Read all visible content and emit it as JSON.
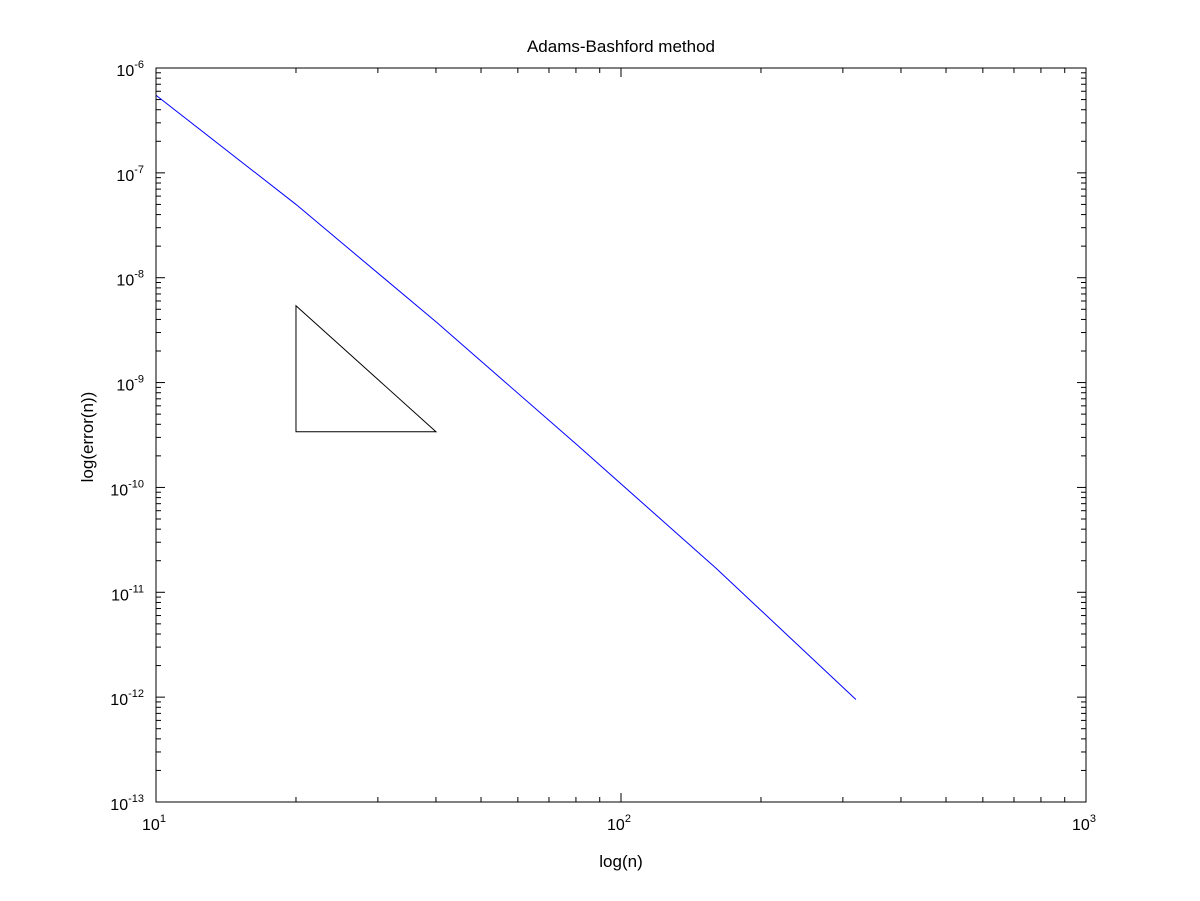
{
  "chart_data": {
    "type": "line",
    "title": "Adams-Bashford method",
    "xlabel": "log(n)",
    "ylabel": "log(error(n))",
    "xscale": "log",
    "yscale": "log",
    "xlim": [
      10,
      1000
    ],
    "ylim": [
      1e-13,
      1e-06
    ],
    "grid": false,
    "x_ticks": [
      {
        "value": 10,
        "base": "10",
        "exp": "1"
      },
      {
        "value": 100,
        "base": "10",
        "exp": "2"
      },
      {
        "value": 1000,
        "base": "10",
        "exp": "3"
      }
    ],
    "y_ticks": [
      {
        "value": 1e-06,
        "base": "10",
        "exp": "-6"
      },
      {
        "value": 1e-07,
        "base": "10",
        "exp": "-7"
      },
      {
        "value": 1e-08,
        "base": "10",
        "exp": "-8"
      },
      {
        "value": 1e-09,
        "base": "10",
        "exp": "-9"
      },
      {
        "value": 1e-10,
        "base": "10",
        "exp": "-10"
      },
      {
        "value": 1e-11,
        "base": "10",
        "exp": "-11"
      },
      {
        "value": 1e-12,
        "base": "10",
        "exp": "-12"
      },
      {
        "value": 1e-13,
        "base": "10",
        "exp": "-13"
      }
    ],
    "series": [
      {
        "color": "#0000ff",
        "x": [
          10,
          20,
          40,
          80,
          160,
          320
        ],
        "y": [
          5.5e-07,
          5e-08,
          3.8e-09,
          2.6e-10,
          1.7e-11,
          9.5e-13
        ]
      }
    ],
    "slope_triangle": {
      "color": "#000000",
      "vertices": [
        [
          20,
          5.4e-09
        ],
        [
          40,
          3.4e-10
        ],
        [
          20,
          3.4e-10
        ]
      ]
    }
  }
}
